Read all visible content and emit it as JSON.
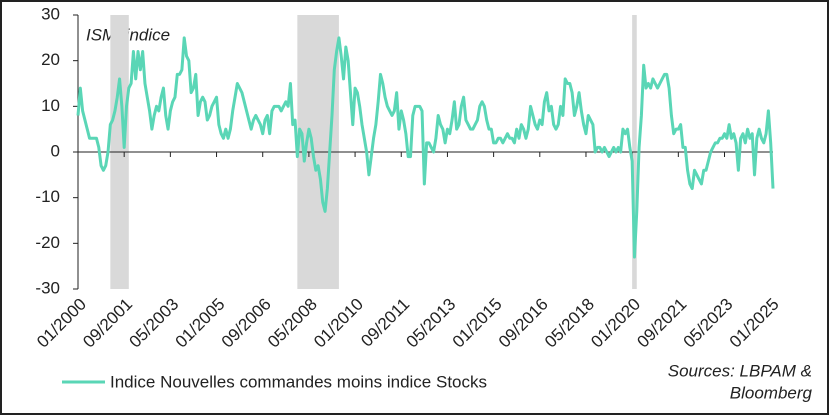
{
  "chart_data": {
    "type": "line",
    "annotation": "ISM, indice",
    "source": [
      "Sources: LBPAM &",
      "Bloomberg"
    ],
    "categories": [
      "01/2000",
      null,
      null,
      null,
      null,
      null,
      null,
      null,
      null,
      null,
      null,
      null,
      null,
      null,
      null,
      null,
      null,
      null,
      null,
      null,
      "09/2001",
      null,
      null,
      null,
      null,
      null,
      null,
      null,
      null,
      null,
      null,
      null,
      null,
      null,
      null,
      null,
      null,
      null,
      null,
      null,
      "05/2003",
      null,
      null,
      null,
      null,
      null,
      null,
      null,
      null,
      null,
      null,
      null,
      null,
      null,
      null,
      null,
      null,
      null,
      null,
      null,
      "01/2005",
      null,
      null,
      null,
      null,
      null,
      null,
      null,
      null,
      null,
      null,
      null,
      null,
      null,
      null,
      null,
      null,
      null,
      null,
      null,
      "09/2006",
      null,
      null,
      null,
      null,
      null,
      null,
      null,
      null,
      null,
      null,
      null,
      null,
      null,
      null,
      null,
      null,
      null,
      null,
      null,
      "05/2008",
      null,
      null,
      null,
      null,
      null,
      null,
      null,
      null,
      null,
      null,
      null,
      null,
      null,
      null,
      null,
      null,
      null,
      null,
      null,
      "01/2010",
      null,
      null,
      null,
      null,
      null,
      null,
      null,
      null,
      null,
      null,
      null,
      null,
      null,
      null,
      null,
      null,
      null,
      null,
      null,
      "09/2011",
      null,
      null,
      null,
      null,
      null,
      null,
      null,
      null,
      null,
      null,
      null,
      null,
      null,
      null,
      null,
      null,
      null,
      null,
      null,
      "05/2013",
      null,
      null,
      null,
      null,
      null,
      null,
      null,
      null,
      null,
      null,
      null,
      null,
      null,
      null,
      null,
      null,
      null,
      null,
      null,
      "01/2015",
      null,
      null,
      null,
      null,
      null,
      null,
      null,
      null,
      null,
      null,
      null,
      null,
      null,
      null,
      null,
      null,
      null,
      null,
      null,
      "09/2016",
      null,
      null,
      null,
      null,
      null,
      null,
      null,
      null,
      null,
      null,
      null,
      null,
      null,
      null,
      null,
      null,
      null,
      null,
      null,
      "05/2018",
      null,
      null,
      null,
      null,
      null,
      null,
      null,
      null,
      null,
      null,
      null,
      null,
      null,
      null,
      null,
      null,
      null,
      null,
      null,
      "01/2020",
      null,
      null,
      null,
      null,
      null,
      null,
      null,
      null,
      null,
      null,
      null,
      null,
      null,
      null,
      null,
      null,
      null,
      null,
      null,
      "09/2021",
      null,
      null,
      null,
      null,
      null,
      null,
      null,
      null,
      null,
      null,
      null,
      null,
      null,
      null,
      null,
      null,
      null,
      null,
      null,
      "05/2023",
      null,
      null,
      null,
      null,
      null,
      null,
      null,
      null,
      null,
      null,
      null,
      null,
      null,
      null,
      null,
      null,
      null,
      null,
      null,
      "01/2025",
      null
    ],
    "series": [
      {
        "name": "Indice Nouvelles commandes moins indice  Stocks",
        "color": "#5ad6b6",
        "values": [
          8,
          14,
          9,
          7,
          5,
          3,
          3,
          3,
          3,
          1,
          -3,
          -4,
          -3,
          0,
          6,
          7,
          9,
          12,
          16,
          10,
          1,
          10,
          14,
          15,
          22,
          16,
          22,
          18,
          22,
          15,
          12,
          9,
          5,
          8,
          10,
          9,
          12,
          14,
          8,
          5,
          9,
          11,
          12,
          17,
          17,
          18,
          25,
          21,
          20,
          13,
          14,
          17,
          8,
          11,
          12,
          11,
          7,
          8,
          10,
          11,
          12,
          6,
          4,
          3,
          5,
          3,
          5,
          9,
          12,
          15,
          14,
          13,
          11,
          9,
          7,
          5,
          7,
          8,
          7,
          6,
          4,
          7,
          8,
          4,
          9,
          10,
          10,
          10,
          9,
          10,
          11,
          10,
          15,
          6,
          7,
          -1,
          5,
          4,
          -2,
          2,
          5,
          3,
          -1,
          -4,
          -3,
          -6,
          -11,
          -13,
          -8,
          0,
          8,
          18,
          22,
          25,
          21,
          16,
          23,
          20,
          13,
          6,
          14,
          13,
          10,
          6,
          3,
          0,
          -5,
          -1,
          3,
          6,
          11,
          17,
          15,
          12,
          10,
          9,
          8,
          9,
          13,
          5,
          9,
          7,
          4,
          -1,
          -1,
          8,
          10,
          10,
          10,
          9,
          -7,
          2,
          2,
          1,
          0,
          3,
          8,
          6,
          5,
          2,
          5,
          4,
          7,
          11,
          5,
          6,
          10,
          12,
          7,
          6,
          5,
          5,
          6,
          7,
          10,
          11,
          10,
          7,
          5,
          5,
          2,
          2,
          3,
          3,
          2,
          3,
          4,
          3,
          3,
          2,
          5,
          3,
          6,
          5,
          3,
          5,
          10,
          8,
          6,
          5,
          7,
          6,
          11,
          13,
          9,
          10,
          6,
          5,
          6,
          10,
          8,
          16,
          15,
          15,
          13,
          8,
          10,
          13,
          9,
          6,
          4,
          8,
          7,
          6,
          0,
          1,
          1,
          0,
          1,
          0,
          -1,
          0,
          1,
          0,
          1,
          0,
          5,
          4,
          5,
          1,
          -2,
          -23,
          -13,
          1,
          8,
          19,
          14,
          15,
          14,
          16,
          15,
          14,
          15,
          16,
          17,
          17,
          14,
          8,
          4,
          5,
          5,
          6,
          1,
          1,
          -4,
          -7,
          -8,
          -4,
          -5,
          -6,
          -7,
          -4,
          -4,
          -2,
          0,
          1,
          2,
          2,
          3,
          3,
          4,
          3,
          6,
          3,
          4,
          2,
          -4,
          3,
          4,
          2,
          5,
          3,
          4,
          -5,
          3,
          5,
          3,
          2,
          4,
          9,
          2,
          -8
        ]
      }
    ],
    "shaded_periods": [
      [
        14,
        22
      ],
      [
        95,
        113
      ],
      [
        240,
        242
      ]
    ],
    "shade_color": "#d9d9d9",
    "ylim": [
      -30,
      30
    ],
    "yticks": [
      -30,
      -20,
      -10,
      0,
      10,
      20,
      30
    ]
  }
}
